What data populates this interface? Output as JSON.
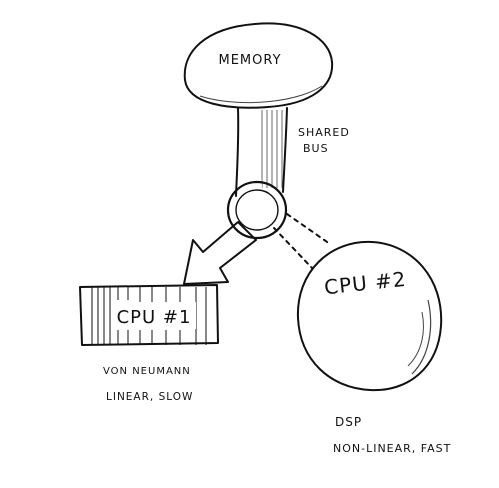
{
  "nodes": {
    "memory": {
      "label": "MEMORY"
    },
    "bus": {
      "label_line1": "SHARED",
      "label_line2": "BUS"
    },
    "cpu1": {
      "label": "CPU #1",
      "caption_line1": "VON NEUMANN",
      "caption_line2": "LINEAR, SLOW"
    },
    "cpu2": {
      "label": "CPU #2",
      "caption_line1": "DSP",
      "caption_line2": "NON-LINEAR, FAST"
    }
  },
  "colors": {
    "ink": "#111111",
    "paper": "#ffffff",
    "hatch": "#444444"
  }
}
